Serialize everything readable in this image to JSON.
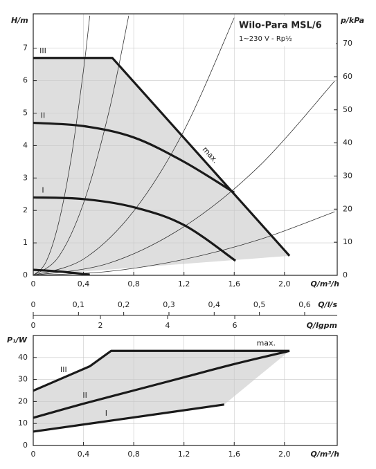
{
  "chart_data": [
    {
      "type": "line",
      "title": "Wilo-Para MSL/6",
      "subtitle": "1~230 V - Rp½",
      "xlabel": "Q/m³/h",
      "ylabel": "H/m",
      "y2label": "p/kPa",
      "xlim": [
        0,
        2.42
      ],
      "ylim": [
        0,
        8.06
      ],
      "y2lim": [
        0,
        79
      ],
      "xticks": [
        0,
        {
          "value": 0.4,
          "label": "0,4"
        },
        {
          "value": 0.8,
          "label": "0,8"
        },
        {
          "value": 1.2,
          "label": "1,2"
        },
        {
          "value": 1.6,
          "label": "1,6"
        },
        {
          "value": 2.0,
          "label": "2,0"
        }
      ],
      "yticks": [
        0,
        1,
        2,
        3,
        4,
        5,
        6,
        7
      ],
      "y2ticks": [
        0,
        10,
        20,
        30,
        40,
        50,
        60,
        70
      ],
      "grid": true,
      "shade_color": "#dedede",
      "max_label": "max.",
      "series": [
        {
          "name": "III",
          "color": "#1a1a1a",
          "smooth": false,
          "x": [
            0,
            0.63,
            2.04
          ],
          "values": [
            6.7,
            6.7,
            0.6
          ]
        },
        {
          "name": "II",
          "color": "#1a1a1a",
          "smooth": true,
          "x": [
            0,
            0.4,
            0.8,
            1.2,
            1.6
          ],
          "values": [
            4.7,
            4.6,
            4.25,
            3.5,
            2.55
          ]
        },
        {
          "name": "I",
          "color": "#1a1a1a",
          "smooth": true,
          "x": [
            0,
            0.4,
            0.8,
            1.2,
            1.61
          ],
          "values": [
            2.4,
            2.35,
            2.1,
            1.55,
            0.45
          ]
        },
        {
          "color": "#1a1a1a",
          "smooth": true,
          "x": [
            0,
            0.2,
            0.45
          ],
          "values": [
            0.17,
            0.12,
            0.02
          ]
        }
      ],
      "system_curves": [
        {
          "color": "#333333",
          "x": [
            0,
            0.1,
            0.2,
            0.3,
            0.4,
            0.45
          ],
          "values": [
            0,
            0.4,
            1.58,
            3.56,
            6.32,
            8.0
          ]
        },
        {
          "color": "#333333",
          "x": [
            0,
            0.2,
            0.4,
            0.6,
            0.76
          ],
          "values": [
            0,
            0.56,
            2.22,
            5.0,
            8.0
          ]
        },
        {
          "color": "#333333",
          "x": [
            0,
            0.4,
            0.8,
            1.2,
            1.6
          ],
          "values": [
            0,
            0.5,
            1.98,
            4.46,
            7.94
          ]
        },
        {
          "color": "#333333",
          "x": [
            0,
            0.6,
            1.2,
            1.8,
            2.4
          ],
          "values": [
            0,
            0.37,
            1.5,
            3.37,
            5.99
          ]
        },
        {
          "color": "#333333",
          "x": [
            0,
            0.6,
            1.2,
            1.8,
            2.4
          ],
          "values": [
            0,
            0.12,
            0.49,
            1.1,
            1.96
          ]
        }
      ],
      "secondary_x_axes": [
        {
          "label": "Q/l/s",
          "xlim": [
            0,
            0.672
          ],
          "xticks": [
            0,
            {
              "value": 0.1,
              "label": "0,1"
            },
            {
              "value": 0.2,
              "label": "0,2"
            },
            {
              "value": 0.3,
              "label": "0,3"
            },
            {
              "value": 0.4,
              "label": "0,4"
            },
            {
              "value": 0.5,
              "label": "0,5"
            },
            {
              "value": 0.6,
              "label": "0,6"
            }
          ]
        },
        {
          "label": "Q/lgpm",
          "xlim": [
            0,
            9.05
          ],
          "xticks": [
            0,
            2,
            4,
            6
          ]
        }
      ]
    },
    {
      "type": "line",
      "xlabel": "Q/m³/h",
      "ylabel": "P₁/W",
      "xlim": [
        0,
        2.42
      ],
      "ylim": [
        0,
        50
      ],
      "xticks": [
        0,
        {
          "value": 0.4,
          "label": "0,4"
        },
        {
          "value": 0.8,
          "label": "0,8"
        },
        {
          "value": 1.2,
          "label": "1,2"
        },
        {
          "value": 1.6,
          "label": "1,6"
        },
        {
          "value": 2.0,
          "label": "2,0"
        }
      ],
      "yticks": [
        0,
        10,
        20,
        30,
        40
      ],
      "grid": true,
      "shade_color": "#dedede",
      "max_label": "max.",
      "series": [
        {
          "name": "III",
          "color": "#1a1a1a",
          "smooth": false,
          "x": [
            0,
            0.45,
            0.62,
            2.04
          ],
          "values": [
            24.9,
            36,
            43,
            43
          ]
        },
        {
          "name": "II",
          "color": "#1a1a1a",
          "smooth": true,
          "x": [
            0,
            0.4,
            0.8,
            1.2,
            1.6,
            2.04
          ],
          "values": [
            12.6,
            19,
            25,
            31,
            37,
            43
          ]
        },
        {
          "name": "I",
          "color": "#1a1a1a",
          "smooth": true,
          "x": [
            0,
            1.52
          ],
          "values": [
            6.3,
            18.6
          ]
        }
      ]
    }
  ]
}
